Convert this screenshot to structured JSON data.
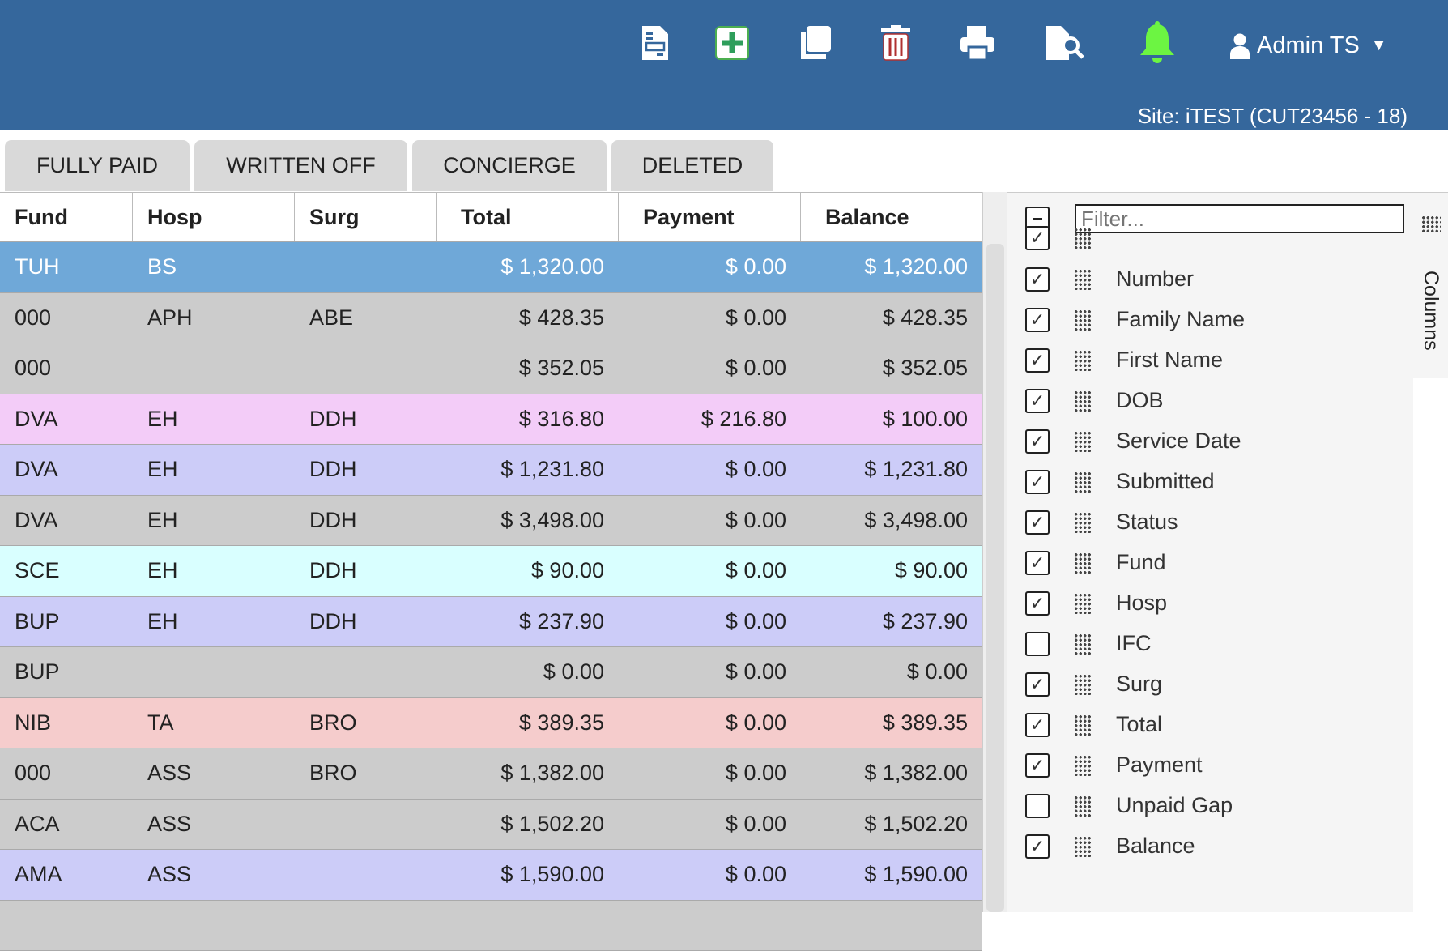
{
  "header": {
    "icons": [
      "document-icon",
      "add-icon",
      "copy-icon",
      "trash-icon",
      "print-icon",
      "file-search-icon",
      "bell-icon"
    ],
    "user": "Admin TS",
    "site": "Site: iTEST (CUT23456 - 18)",
    "colors": {
      "bar": "#35679c",
      "add": "#2e9e5b",
      "trash": "#b03030",
      "bell": "#6cf542"
    }
  },
  "tabs": [
    "FULLY PAID",
    "WRITTEN OFF",
    "CONCIERGE",
    "DELETED"
  ],
  "grid": {
    "columns": [
      "Fund",
      "Hosp",
      "Surg",
      "Total",
      "Payment",
      "Balance"
    ],
    "rows": [
      {
        "cells": [
          "TUH",
          "BS",
          "",
          "$ 1,320.00",
          "$ 0.00",
          "$ 1,320.00"
        ],
        "color": "#6fa8d8",
        "selected": true
      },
      {
        "cells": [
          "000",
          "APH",
          "ABE",
          "$ 428.35",
          "$ 0.00",
          "$ 428.35"
        ],
        "color": "#cccccc"
      },
      {
        "cells": [
          "000",
          "",
          "",
          "$ 352.05",
          "$ 0.00",
          "$ 352.05"
        ],
        "color": "#cccccc"
      },
      {
        "cells": [
          "DVA",
          "EH",
          "DDH",
          "$ 316.80",
          "$ 216.80",
          "$ 100.00"
        ],
        "color": "#f3ccf8"
      },
      {
        "cells": [
          "DVA",
          "EH",
          "DDH",
          "$ 1,231.80",
          "$ 0.00",
          "$ 1,231.80"
        ],
        "color": "#ccccf8"
      },
      {
        "cells": [
          "DVA",
          "EH",
          "DDH",
          "$ 3,498.00",
          "$ 0.00",
          "$ 3,498.00"
        ],
        "color": "#cccccc"
      },
      {
        "cells": [
          "SCE",
          "EH",
          "DDH",
          "$ 90.00",
          "$ 0.00",
          "$ 90.00"
        ],
        "color": "#d9ffff"
      },
      {
        "cells": [
          "BUP",
          "EH",
          "DDH",
          "$ 237.90",
          "$ 0.00",
          "$ 237.90"
        ],
        "color": "#ccccf8"
      },
      {
        "cells": [
          "BUP",
          "",
          "",
          "$ 0.00",
          "$ 0.00",
          "$ 0.00"
        ],
        "color": "#cccccc"
      },
      {
        "cells": [
          "NIB",
          "TA",
          "BRO",
          "$ 389.35",
          "$ 0.00",
          "$ 389.35"
        ],
        "color": "#f5cccc"
      },
      {
        "cells": [
          "000",
          "ASS",
          "BRO",
          "$ 1,382.00",
          "$ 0.00",
          "$ 1,382.00"
        ],
        "color": "#cccccc"
      },
      {
        "cells": [
          "ACA",
          "ASS",
          "",
          "$ 1,502.20",
          "$ 0.00",
          "$ 1,502.20"
        ],
        "color": "#cccccc"
      },
      {
        "cells": [
          "AMA",
          "ASS",
          "",
          "$ 1,590.00",
          "$ 0.00",
          "$ 1,590.00"
        ],
        "color": "#ccccf8"
      },
      {
        "cells": [
          "",
          "",
          "",
          "",
          "",
          ""
        ],
        "color": "#cccccc"
      }
    ]
  },
  "panel": {
    "filter_placeholder": "Filter...",
    "side_tab": "Columns",
    "items": [
      {
        "label": "",
        "checked": true
      },
      {
        "label": "Number",
        "checked": true
      },
      {
        "label": "Family Name",
        "checked": true
      },
      {
        "label": "First Name",
        "checked": true
      },
      {
        "label": "DOB",
        "checked": true
      },
      {
        "label": "Service Date",
        "checked": true
      },
      {
        "label": "Submitted",
        "checked": true
      },
      {
        "label": "Status",
        "checked": true
      },
      {
        "label": "Fund",
        "checked": true
      },
      {
        "label": "Hosp",
        "checked": true
      },
      {
        "label": "IFC",
        "checked": false
      },
      {
        "label": "Surg",
        "checked": true
      },
      {
        "label": "Total",
        "checked": true
      },
      {
        "label": "Payment",
        "checked": true
      },
      {
        "label": "Unpaid Gap",
        "checked": false
      },
      {
        "label": "Balance",
        "checked": true
      }
    ]
  }
}
